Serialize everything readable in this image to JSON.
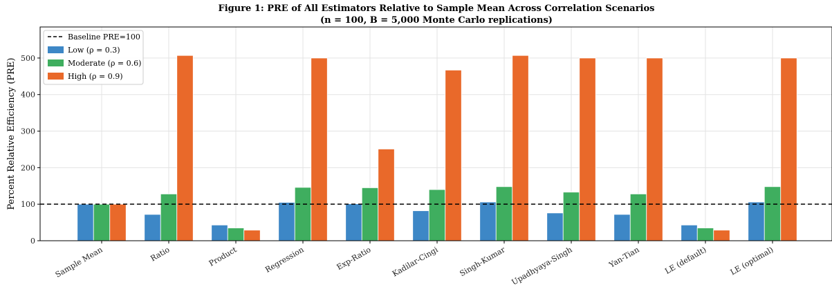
{
  "chart_data": {
    "type": "bar",
    "title": "Figure 1: PRE of All Estimators Relative to Sample Mean Across Correlation Scenarios",
    "subtitle": "(n = 100, B = 5,000 Monte Carlo replications)",
    "xlabel": "",
    "ylabel": "Percent Relative Efficiency (PRE)",
    "ylim": [
      0,
      585
    ],
    "yticks": [
      0,
      100,
      200,
      300,
      400,
      500
    ],
    "grid": true,
    "legend_position": "top-left",
    "baseline": {
      "name": "Baseline PRE=100",
      "value": 100,
      "color": "#000000",
      "style": "dashed"
    },
    "categories": [
      "Sample Mean",
      "Ratio",
      "Product",
      "Regression",
      "Exp-Ratio",
      "Kadilar-Cingi",
      "Singh-Kumar",
      "Upadhyaya-Singh",
      "Yan-Tian",
      "LE (default)",
      "LE (optimal)"
    ],
    "series": [
      {
        "name": "Low (ρ = 0.3)",
        "color": "#3d87c6",
        "values": [
          100,
          72,
          43,
          105,
          101,
          82,
          106,
          76,
          72,
          43,
          106
        ]
      },
      {
        "name": "Moderate (ρ = 0.6)",
        "color": "#3fae5f",
        "values": [
          100,
          128,
          35,
          146,
          145,
          140,
          148,
          133,
          128,
          35,
          148
        ]
      },
      {
        "name": "High (ρ = 0.9)",
        "color": "#e9692a",
        "values": [
          100,
          507,
          29,
          500,
          251,
          467,
          507,
          500,
          500,
          29,
          500
        ]
      }
    ]
  }
}
